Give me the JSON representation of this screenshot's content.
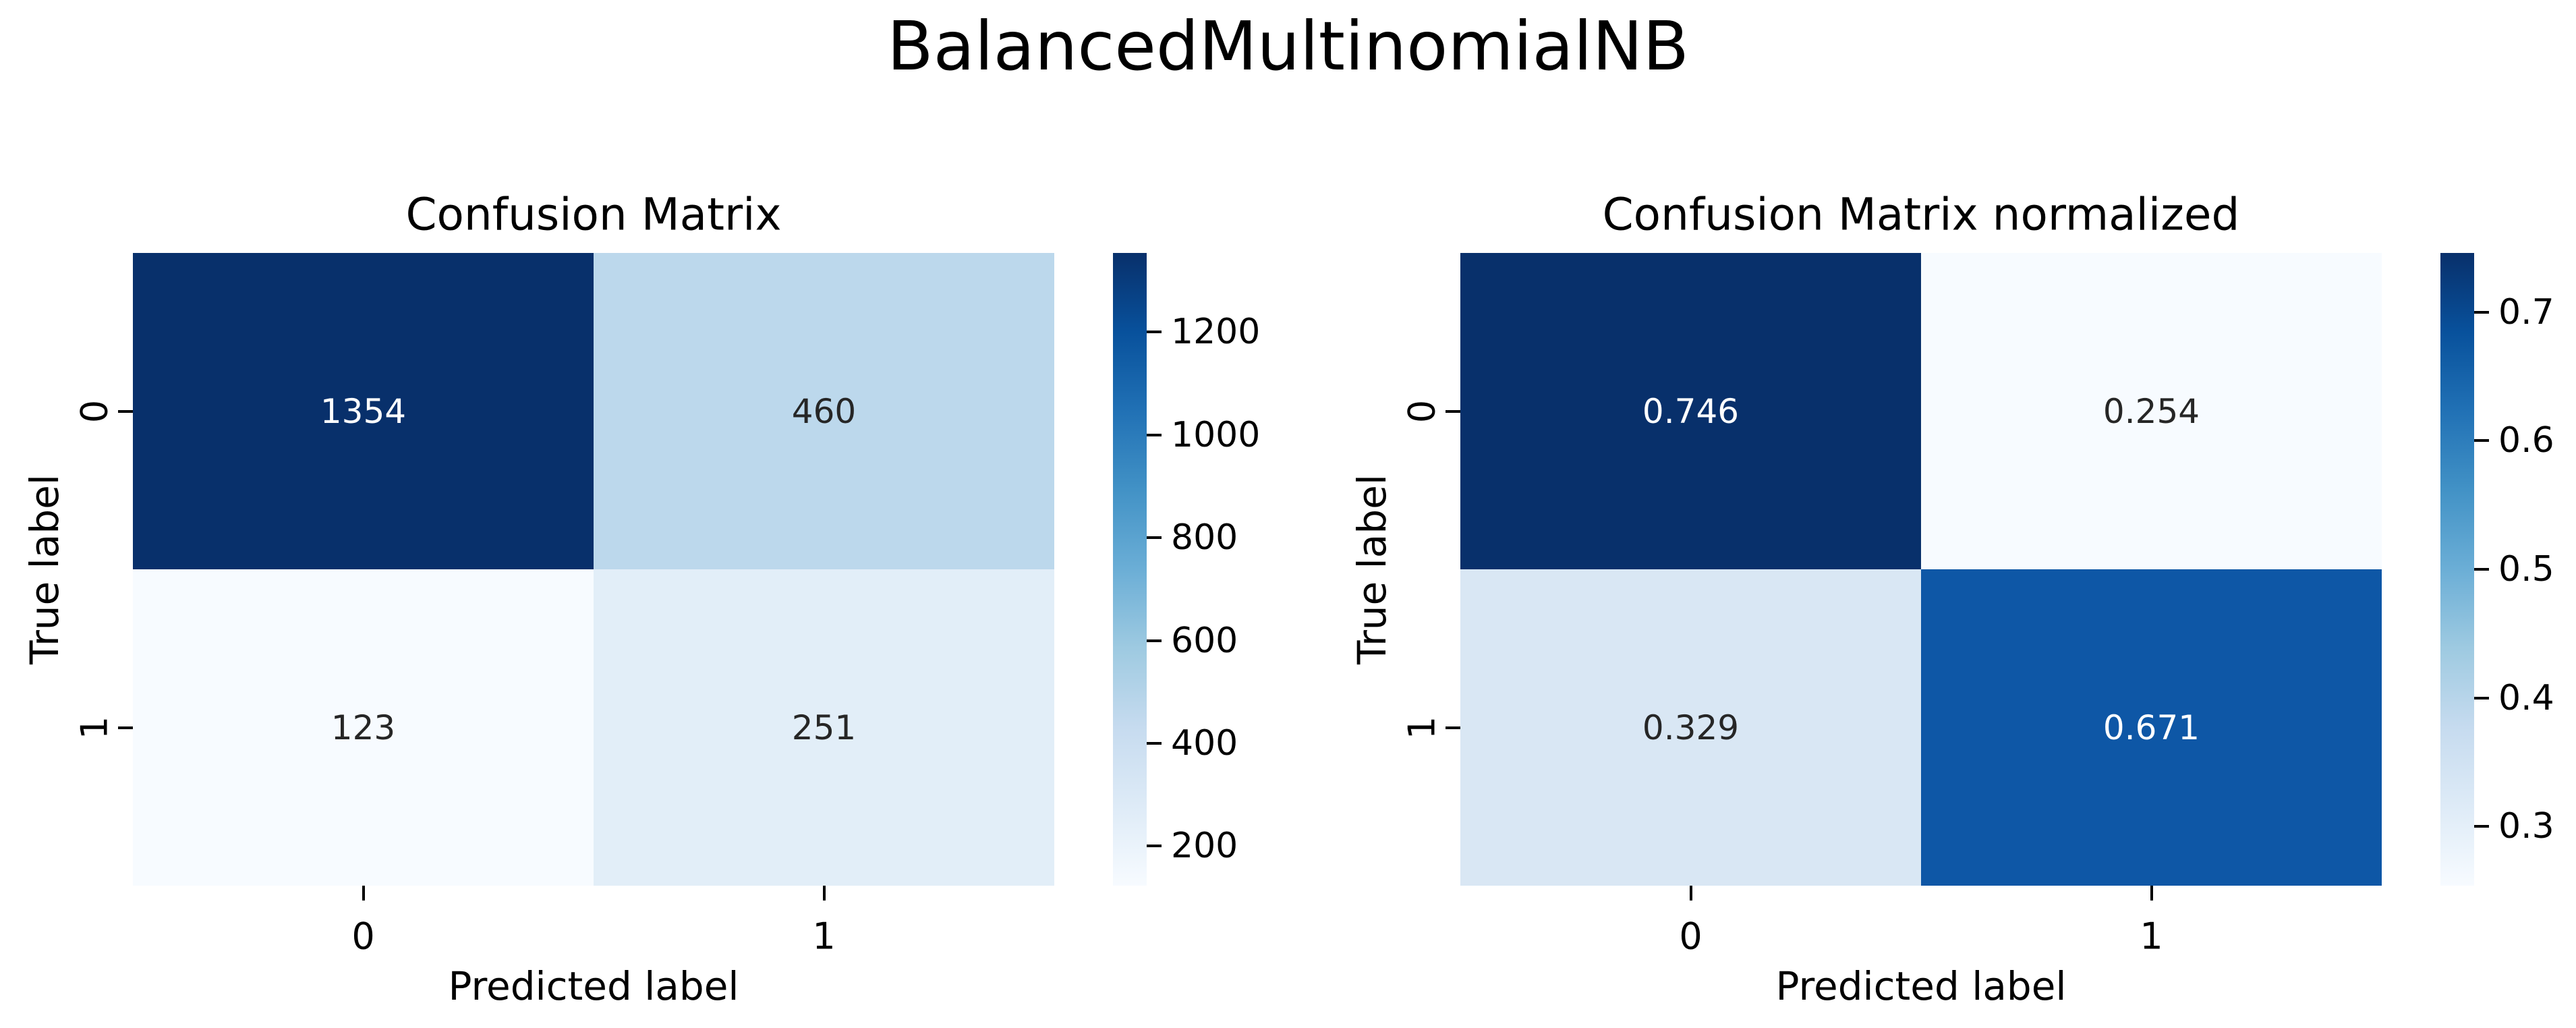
{
  "figure": {
    "suptitle": "BalancedMultinomialNB",
    "background_color": "#ffffff",
    "text_color": "#000000"
  },
  "colormap": {
    "name": "Blues",
    "stops": [
      "#f7fbff",
      "#deebf7",
      "#c6dbef",
      "#9ecae1",
      "#6baed6",
      "#4292c6",
      "#2171b5",
      "#08519c",
      "#08306b"
    ]
  },
  "annotation_colors": {
    "dark": "#262626",
    "light": "#ffffff"
  },
  "chart_data": [
    {
      "type": "heatmap",
      "title": "Confusion Matrix",
      "xlabel": "Predicted label",
      "ylabel": "True label",
      "x_tick_labels": [
        "0",
        "1"
      ],
      "y_tick_labels": [
        "0",
        "1"
      ],
      "matrix": [
        [
          1354,
          460
        ],
        [
          123,
          251
        ]
      ],
      "cell_labels": [
        [
          "1354",
          "460"
        ],
        [
          "123",
          "251"
        ]
      ],
      "vmin": 123,
      "vmax": 1354,
      "colorbar_ticks": [
        200,
        400,
        600,
        800,
        1000,
        1200
      ],
      "colorbar_tick_labels": [
        "200",
        "400",
        "600",
        "800",
        "1000",
        "1200"
      ],
      "cell_colors": [
        [
          "#08306b",
          "#bcd8ec"
        ],
        [
          "#f7fbff",
          "#e2eef8"
        ]
      ],
      "cell_text_colors": [
        [
          "#ffffff",
          "#262626"
        ],
        [
          "#262626",
          "#262626"
        ]
      ],
      "colorbar_position": "right",
      "grid": false
    },
    {
      "type": "heatmap",
      "title": "Confusion Matrix normalized",
      "xlabel": "Predicted label",
      "ylabel": "True label",
      "x_tick_labels": [
        "0",
        "1"
      ],
      "y_tick_labels": [
        "0",
        "1"
      ],
      "matrix": [
        [
          0.746,
          0.254
        ],
        [
          0.329,
          0.671
        ]
      ],
      "cell_labels": [
        [
          "0.746",
          "0.254"
        ],
        [
          "0.329",
          "0.671"
        ]
      ],
      "vmin": 0.254,
      "vmax": 0.746,
      "colorbar_ticks": [
        0.3,
        0.4,
        0.5,
        0.6,
        0.7
      ],
      "colorbar_tick_labels": [
        "0.3",
        "0.4",
        "0.5",
        "0.6",
        "0.7"
      ],
      "cell_colors": [
        [
          "#08306b",
          "#f7fbff"
        ],
        [
          "#d9e7f4",
          "#0e57a6"
        ]
      ],
      "cell_text_colors": [
        [
          "#ffffff",
          "#262626"
        ],
        [
          "#262626",
          "#ffffff"
        ]
      ],
      "colorbar_position": "right",
      "grid": false
    }
  ]
}
